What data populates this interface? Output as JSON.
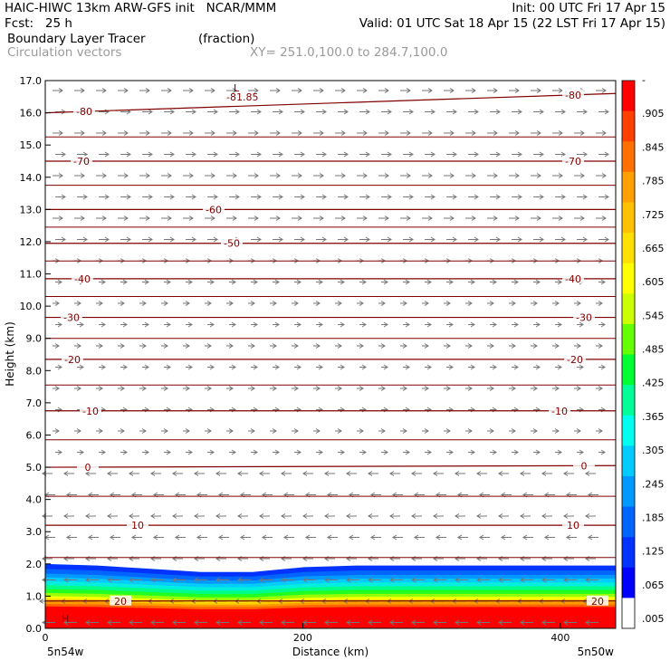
{
  "header": {
    "model_line": "HAIC-HIWC 13km ARW-GFS init   NCAR/MMM",
    "init_line": "Init: 00 UTC Fri 17 Apr 15",
    "fcst_line": "Fcst:   25 h",
    "valid_line": "Valid: 01 UTC Sat 18 Apr 15 (22 LST Fri 17 Apr 15)",
    "field_name": "Boundary Layer Tracer",
    "field_unit": "(fraction)",
    "vector_name": "Circulation vectors",
    "cross_section": "XY= 251.0,100.0 to 284.7,100.0"
  },
  "chart_data": {
    "type": "cross-section",
    "xlabel": "Distance (km)",
    "ylabel": "Height (km)",
    "xlim": [
      0,
      443
    ],
    "ylim": [
      0,
      17
    ],
    "x_ticks": [
      0,
      200,
      400
    ],
    "y_ticks": [
      "0.0",
      "1.0",
      "2.0",
      "3.0",
      "4.0",
      "5.0",
      "6.0",
      "7.0",
      "8.0",
      "9.0",
      "10.0",
      "11.0",
      "12.0",
      "13.0",
      "14.0",
      "15.0",
      "16.0",
      "17.0"
    ],
    "endpoint_labels": {
      "left": "5n54w",
      "right": "5n50w"
    },
    "colorbar": {
      "labels": [
        "-",
        ".905",
        ".845",
        ".785",
        ".725",
        ".665",
        ".605",
        ".545",
        ".485",
        ".425",
        ".365",
        ".305",
        ".245",
        ".185",
        ".125",
        ".065",
        ".005"
      ],
      "colors": [
        "#ffffff",
        "#0000ff",
        "#0033ff",
        "#0066ff",
        "#0099ff",
        "#00ccff",
        "#00ffee",
        "#00ff99",
        "#00ff33",
        "#66ff00",
        "#ccff00",
        "#ffff00",
        "#ffe000",
        "#ffc000",
        "#ffa000",
        "#ff7000",
        "#ff4000",
        "#ff0000"
      ]
    },
    "temperature_contours": [
      {
        "value": -81.85,
        "label": "-81.85",
        "type": "minimum"
      },
      {
        "value": -80,
        "label": "-80",
        "heights": [
          16.0,
          16.6
        ]
      },
      {
        "value": -70,
        "label": "-70",
        "heights": [
          14.5,
          14.5
        ]
      },
      {
        "value": -60,
        "label": "-60",
        "heights": [
          13.0,
          13.0
        ]
      },
      {
        "value": -50,
        "label": "-50",
        "heights": [
          11.95,
          11.95
        ]
      },
      {
        "value": -40,
        "label": "-40",
        "heights": [
          10.85,
          10.85
        ]
      },
      {
        "value": -30,
        "label": "-30",
        "heights": [
          9.65,
          9.65
        ]
      },
      {
        "value": -20,
        "label": "-20",
        "heights": [
          8.35,
          8.35
        ]
      },
      {
        "value": -10,
        "label": "-10",
        "heights": [
          6.75,
          6.75
        ]
      },
      {
        "value": 0,
        "label": "0",
        "heights": [
          5.0,
          5.05
        ]
      },
      {
        "value": 10,
        "label": "10",
        "heights": [
          3.2,
          3.2
        ]
      },
      {
        "value": 20,
        "label": "20",
        "heights": [
          0.85,
          0.85
        ]
      }
    ],
    "tracer_top_km": [
      2.0,
      1.95,
      1.85,
      1.75,
      1.75,
      1.9,
      1.95,
      1.95,
      1.95,
      1.95,
      1.95,
      1.95
    ],
    "minimum_marker": "L",
    "maximum_marker": "H"
  }
}
